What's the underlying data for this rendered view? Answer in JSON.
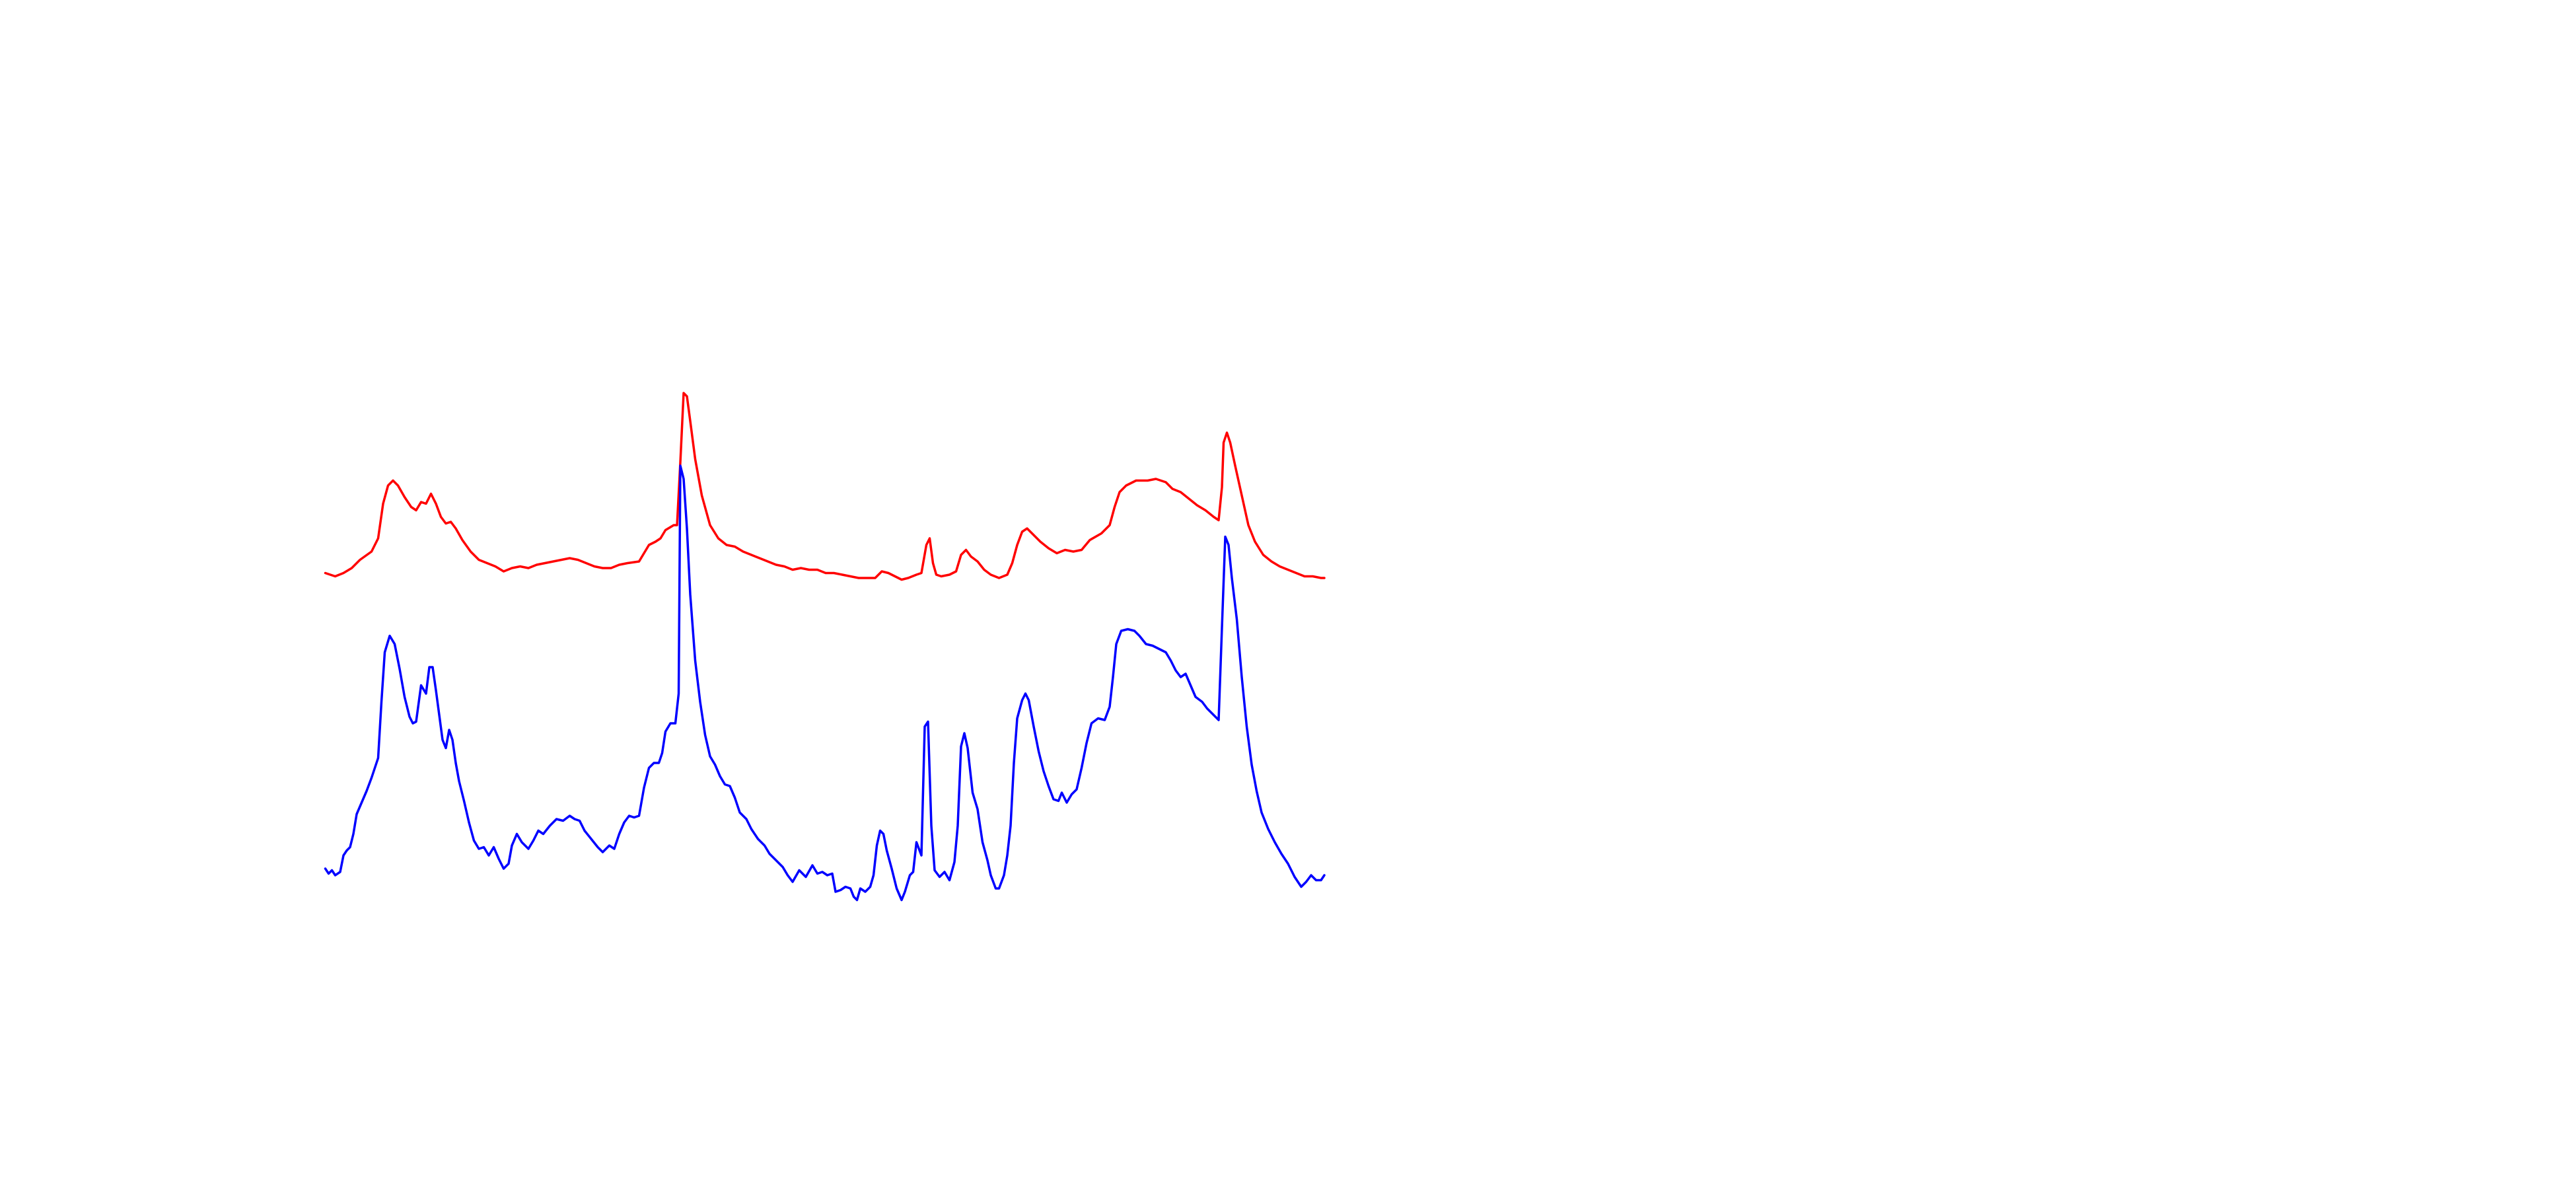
{
  "chart_data": {
    "type": "line",
    "xlim": [
      0,
      1560
    ],
    "ylim": [
      720,
      0
    ],
    "series": [
      {
        "color": "#ff0000",
        "x": [
          197,
          203,
          208,
          213,
          218,
          225,
          229,
          232,
          235,
          238,
          241,
          245,
          249,
          252,
          255,
          258,
          261,
          264,
          267,
          270,
          273,
          276,
          280,
          285,
          290,
          295,
          300,
          305,
          310,
          315,
          320,
          325,
          330,
          335,
          340,
          345,
          350,
          355,
          360,
          365,
          370,
          375,
          380,
          387,
          390,
          393,
          397,
          400,
          403,
          408,
          410,
          412,
          414,
          416,
          418,
          421,
          425,
          430,
          435,
          440,
          445,
          450,
          455,
          460,
          465,
          470,
          475,
          480,
          485,
          490,
          495,
          500,
          505,
          510,
          515,
          520,
          525,
          530,
          534,
          538,
          542,
          546,
          550,
          555,
          558,
          561,
          563,
          565,
          567,
          570,
          575,
          579,
          582,
          585,
          588,
          592,
          596,
          600,
          605,
          610,
          613,
          616,
          619,
          622,
          625,
          630,
          635,
          640,
          645,
          650,
          655,
          660,
          667,
          672,
          675,
          678,
          682,
          688,
          695,
          700,
          706,
          710,
          715,
          720,
          725,
          730,
          735,
          738,
          740,
          741,
          743,
          745,
          748,
          752,
          756,
          760,
          765,
          770,
          775,
          780,
          785,
          790,
          795,
          800,
          802
        ],
        "values": [
          347,
          349,
          347,
          344,
          339,
          334,
          326,
          305,
          294,
          291,
          294,
          301,
          307,
          309,
          304,
          305,
          299,
          305,
          313,
          317,
          316,
          320,
          327,
          334,
          339,
          341,
          343,
          346,
          344,
          343,
          344,
          342,
          341,
          340,
          339,
          338,
          339,
          341,
          343,
          344,
          344,
          342,
          341,
          340,
          335,
          330,
          328,
          326,
          321,
          318,
          318,
          280,
          238,
          240,
          255,
          278,
          300,
          318,
          326,
          330,
          331,
          334,
          336,
          338,
          340,
          342,
          343,
          345,
          344,
          345,
          345,
          347,
          347,
          348,
          349,
          350,
          350,
          350,
          346,
          347,
          349,
          351,
          350,
          348,
          347,
          330,
          326,
          341,
          348,
          349,
          348,
          346,
          336,
          333,
          337,
          340,
          345,
          348,
          350,
          348,
          341,
          330,
          322,
          320,
          323,
          328,
          332,
          335,
          333,
          334,
          333,
          327,
          323,
          318,
          307,
          298,
          294,
          291,
          291,
          290,
          292,
          296,
          298,
          302,
          306,
          309,
          313,
          315,
          295,
          268,
          262,
          268,
          282,
          300,
          318,
          328,
          336,
          340,
          343,
          345,
          347,
          349,
          349,
          350,
          350
        ]
      },
      {
        "color": "#0000ff",
        "x": [
          197,
          199,
          201,
          203,
          206,
          208,
          210,
          212,
          214,
          216,
          219,
          222,
          225,
          227,
          229,
          231,
          233,
          236,
          239,
          242,
          245,
          248,
          250,
          252,
          255,
          258,
          260,
          262,
          264,
          266,
          268,
          270,
          272,
          274,
          276,
          278,
          281,
          284,
          287,
          290,
          293,
          296,
          299,
          302,
          305,
          308,
          310,
          313,
          316,
          320,
          323,
          326,
          329,
          333,
          337,
          341,
          345,
          348,
          351,
          354,
          358,
          362,
          365,
          369,
          372,
          375,
          378,
          381,
          384,
          387,
          390,
          393,
          396,
          399,
          401,
          403,
          406,
          409,
          411,
          412,
          414,
          416,
          418,
          421,
          424,
          427,
          430,
          433,
          436,
          439,
          442,
          445,
          448,
          452,
          455,
          459,
          463,
          466,
          470,
          474,
          477,
          480,
          484,
          488,
          492,
          495,
          498,
          501,
          504,
          506,
          509,
          512,
          515,
          517,
          519,
          521,
          524,
          527,
          529,
          531,
          533,
          535,
          537,
          540,
          543,
          546,
          548,
          551,
          553,
          555,
          558,
          560,
          562,
          564,
          566,
          569,
          572,
          575,
          578,
          580,
          582,
          584,
          586,
          589,
          592,
          595,
          598,
          600,
          603,
          605,
          608,
          610,
          612,
          614,
          616,
          619,
          621,
          623,
          626,
          629,
          632,
          635,
          638,
          641,
          643,
          646,
          649,
          652,
          655,
          658,
          661,
          665,
          669,
          672,
          674,
          676,
          679,
          683,
          687,
          690,
          694,
          698,
          702,
          706,
          709,
          712,
          715,
          718,
          721,
          724,
          728,
          731,
          735,
          738,
          740,
          742,
          744,
          746,
          749,
          752,
          755,
          758,
          761,
          764,
          768,
          772,
          776,
          780,
          784,
          788,
          791,
          794,
          797,
          800,
          802
        ],
        "values": [
          526,
          529,
          527,
          530,
          528,
          518,
          515,
          513,
          505,
          493,
          486,
          479,
          471,
          465,
          459,
          425,
          395,
          385,
          390,
          405,
          422,
          434,
          438,
          437,
          415,
          420,
          404,
          404,
          418,
          433,
          448,
          453,
          442,
          448,
          462,
          473,
          485,
          498,
          509,
          514,
          513,
          518,
          513,
          520,
          526,
          523,
          512,
          505,
          510,
          514,
          509,
          503,
          505,
          500,
          496,
          497,
          494,
          496,
          497,
          503,
          508,
          513,
          516,
          512,
          514,
          505,
          498,
          494,
          495,
          494,
          477,
          465,
          462,
          462,
          456,
          443,
          438,
          438,
          420,
          282,
          290,
          320,
          360,
          400,
          425,
          445,
          458,
          463,
          470,
          475,
          476,
          483,
          492,
          496,
          502,
          508,
          512,
          517,
          521,
          525,
          530,
          534,
          527,
          531,
          524,
          529,
          528,
          530,
          529,
          540,
          539,
          537,
          538,
          543,
          545,
          538,
          540,
          537,
          530,
          512,
          503,
          505,
          515,
          526,
          538,
          545,
          540,
          530,
          528,
          510,
          518,
          440,
          437,
          500,
          527,
          531,
          528,
          533,
          522,
          500,
          452,
          444,
          453,
          480,
          490,
          510,
          521,
          530,
          538,
          538,
          530,
          518,
          500,
          462,
          435,
          424,
          420,
          424,
          440,
          455,
          467,
          476,
          484,
          485,
          480,
          486,
          481,
          478,
          465,
          450,
          438,
          435,
          436,
          428,
          410,
          390,
          382,
          381,
          382,
          385,
          390,
          391,
          393,
          395,
          400,
          406,
          410,
          408,
          415,
          422,
          425,
          429,
          433,
          436,
          380,
          325,
          330,
          350,
          375,
          410,
          440,
          463,
          479,
          492,
          502,
          510,
          517,
          523,
          531,
          537,
          534,
          530,
          533,
          533,
          530
        ]
      }
    ]
  }
}
